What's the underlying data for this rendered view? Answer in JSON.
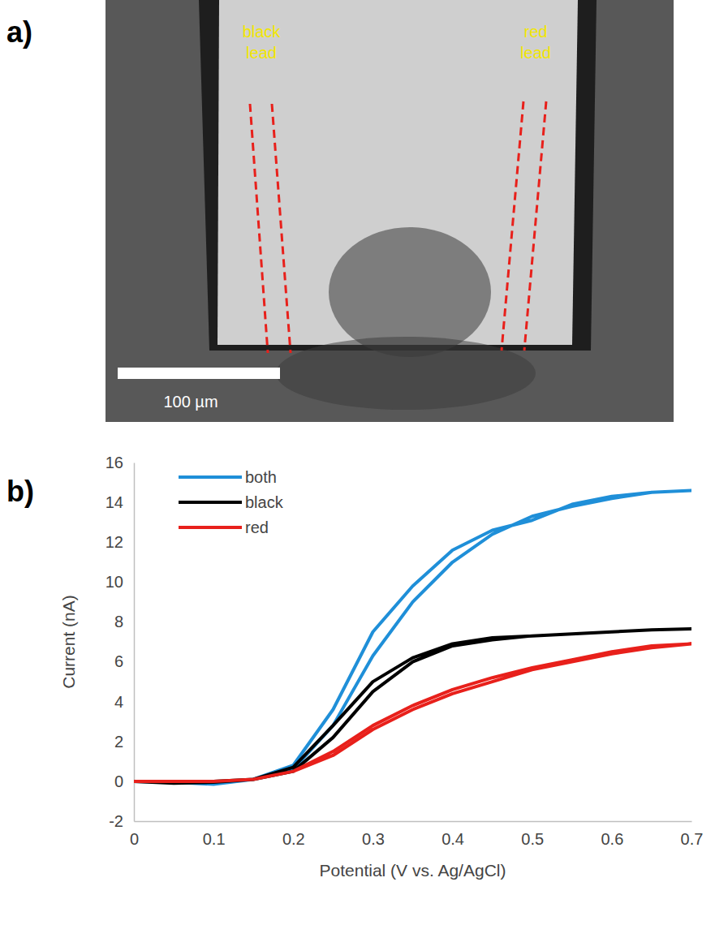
{
  "panel_letters": [
    "a)",
    "b)"
  ],
  "image_panel": {
    "annotations": [
      "black lead",
      "red lead"
    ],
    "scale_bar": "100 µm"
  },
  "chart_data": {
    "type": "line",
    "x_label": "Potential (V vs. Ag/AgCl)",
    "y_label": "Current (nA)",
    "x": [
      0,
      0.05,
      0.1,
      0.15,
      0.2,
      0.25,
      0.3,
      0.35,
      0.4,
      0.45,
      0.5,
      0.55,
      0.6,
      0.65,
      0.7,
      0.65,
      0.6,
      0.55,
      0.5,
      0.45,
      0.4,
      0.35,
      0.3,
      0.25,
      0.2,
      0.15,
      0.1,
      0.05,
      0
    ],
    "series": [
      {
        "name": "both",
        "color": "#1f8fd8",
        "values": [
          0,
          -0.05,
          -0.15,
          0.1,
          0.6,
          2.8,
          6.3,
          9.0,
          11.0,
          12.4,
          13.3,
          13.8,
          14.2,
          14.5,
          14.6,
          14.5,
          14.3,
          13.9,
          13.1,
          12.6,
          11.6,
          9.8,
          7.5,
          3.6,
          0.8,
          0.1,
          -0.1,
          -0.05,
          0
        ]
      },
      {
        "name": "black",
        "color": "#000000",
        "values": [
          0,
          -0.1,
          -0.05,
          0.1,
          0.5,
          2.2,
          4.5,
          6.0,
          6.8,
          7.1,
          7.3,
          7.4,
          7.5,
          7.6,
          7.65,
          7.6,
          7.5,
          7.4,
          7.3,
          7.2,
          6.9,
          6.2,
          5.0,
          2.8,
          0.7,
          0.1,
          0,
          -0.05,
          0
        ]
      },
      {
        "name": "red",
        "color": "#e8201b",
        "values": [
          0,
          0,
          0,
          0.1,
          0.5,
          1.3,
          2.6,
          3.6,
          4.4,
          5.0,
          5.6,
          6.0,
          6.4,
          6.7,
          6.9,
          6.8,
          6.5,
          6.1,
          5.7,
          5.2,
          4.6,
          3.8,
          2.8,
          1.5,
          0.5,
          0.1,
          0,
          0,
          0
        ]
      }
    ],
    "xlim": [
      0,
      0.7
    ],
    "xticks": [
      0,
      0.1,
      0.2,
      0.3,
      0.4,
      0.5,
      0.6,
      0.7
    ],
    "ylim": [
      -2,
      16
    ],
    "yticks": [
      -2,
      0,
      2,
      4,
      6,
      8,
      10,
      12,
      14,
      16
    ],
    "legend": "top-left",
    "grid": false
  }
}
